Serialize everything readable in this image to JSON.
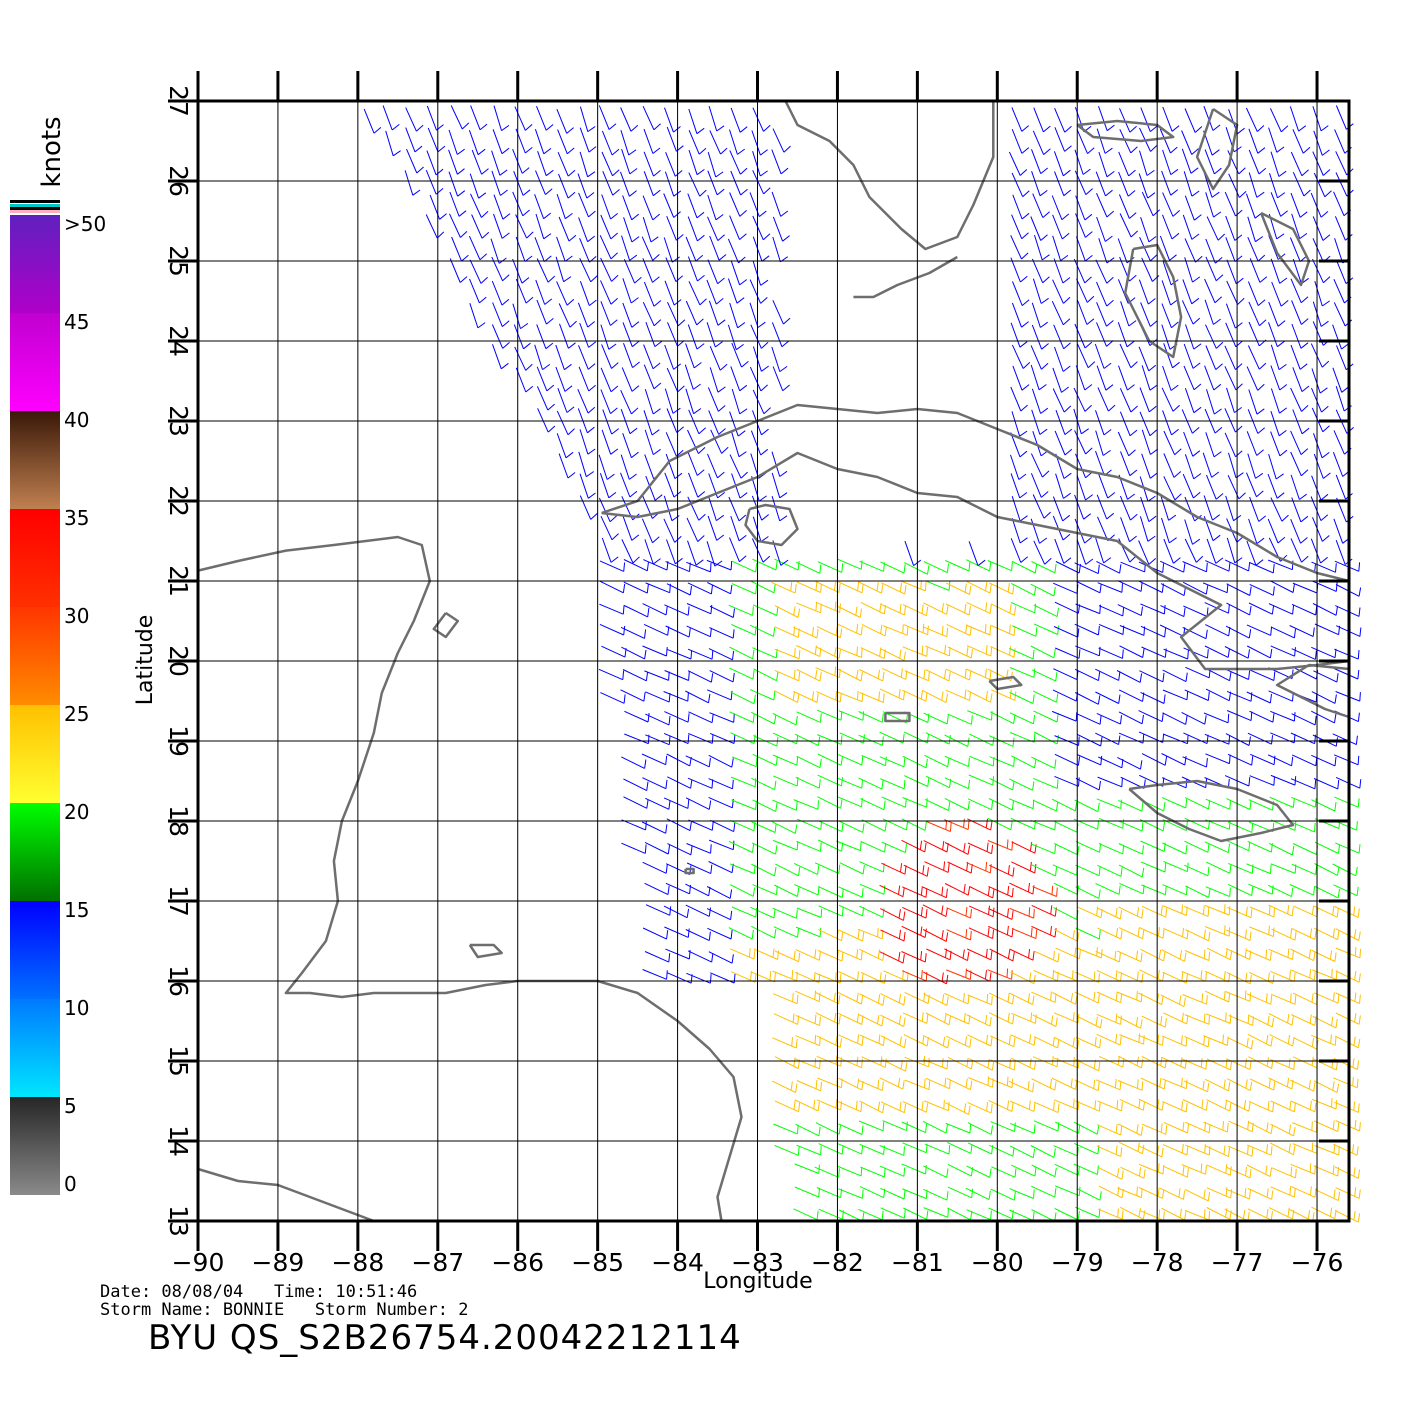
{
  "colorbar": {
    "unit": "knots",
    "labels": [
      {
        "v": 0,
        "t": "0"
      },
      {
        "v": 5,
        "t": "5"
      },
      {
        "v": 10,
        "t": "10"
      },
      {
        "v": 15,
        "t": "15"
      },
      {
        "v": 20,
        "t": "20"
      },
      {
        "v": 25,
        "t": "25"
      },
      {
        "v": 30,
        "t": "30"
      },
      {
        "v": 35,
        "t": "35"
      },
      {
        "v": 40,
        "t": "40"
      },
      {
        "v": 45,
        "t": "45"
      },
      {
        "v": 50,
        "t": ">50"
      }
    ],
    "bands": [
      {
        "from": 0,
        "to": 5,
        "c1": "#8a8a8a",
        "c2": "#262626"
      },
      {
        "from": 5,
        "to": 10,
        "c1": "#00e6ff",
        "c2": "#007aff"
      },
      {
        "from": 10,
        "to": 15,
        "c1": "#0070ff",
        "c2": "#0000ff"
      },
      {
        "from": 15,
        "to": 20,
        "c1": "#007000",
        "c2": "#00ff00"
      },
      {
        "from": 20,
        "to": 25,
        "c1": "#ffff30",
        "c2": "#ffc000"
      },
      {
        "from": 25,
        "to": 30,
        "c1": "#ff8c00",
        "c2": "#ff3500"
      },
      {
        "from": 30,
        "to": 35,
        "c1": "#ff3000",
        "c2": "#ff0000"
      },
      {
        "from": 35,
        "to": 40,
        "c1": "#c08050",
        "c2": "#3a1808"
      },
      {
        "from": 40,
        "to": 45,
        "c1": "#ff00ff",
        "c2": "#c000d0"
      },
      {
        "from": 45,
        "to": 50,
        "c1": "#b000c8",
        "c2": "#6020c0"
      }
    ]
  },
  "chart_data": {
    "type": "map",
    "xlabel": "Longitude",
    "ylabel": "Latitude",
    "xlim": [
      -90,
      -75.6
    ],
    "ylim": [
      13,
      27
    ],
    "xticks": [
      {
        "v": -90,
        "t": "−90"
      },
      {
        "v": -89,
        "t": "−89"
      },
      {
        "v": -88,
        "t": "−88"
      },
      {
        "v": -87,
        "t": "−87"
      },
      {
        "v": -86,
        "t": "−86"
      },
      {
        "v": -85,
        "t": "−85"
      },
      {
        "v": -84,
        "t": "−84"
      },
      {
        "v": -83,
        "t": "−83"
      },
      {
        "v": -82,
        "t": "−82"
      },
      {
        "v": -81,
        "t": "−81"
      },
      {
        "v": -80,
        "t": "−80"
      },
      {
        "v": -79,
        "t": "−79"
      },
      {
        "v": -78,
        "t": "−78"
      },
      {
        "v": -77,
        "t": "−77"
      },
      {
        "v": -76,
        "t": "−76"
      }
    ],
    "yticks": [
      {
        "v": 13,
        "t": "13"
      },
      {
        "v": 14,
        "t": "14"
      },
      {
        "v": 15,
        "t": "15"
      },
      {
        "v": 16,
        "t": "16"
      },
      {
        "v": 17,
        "t": "17"
      },
      {
        "v": 18,
        "t": "18"
      },
      {
        "v": 19,
        "t": "19"
      },
      {
        "v": 20,
        "t": "20"
      },
      {
        "v": 21,
        "t": "21"
      },
      {
        "v": 22,
        "t": "22"
      },
      {
        "v": 23,
        "t": "23"
      },
      {
        "v": 24,
        "t": "24"
      },
      {
        "v": 25,
        "t": "25"
      },
      {
        "v": 26,
        "t": "26"
      },
      {
        "v": 27,
        "t": "27"
      }
    ],
    "grid": true,
    "coast_color": "#6e6e6e",
    "coastlines": [
      {
        "name": "yucatan-honduras",
        "points": [
          [
            -90,
            21.13
          ],
          [
            -89.5,
            21.25
          ],
          [
            -88.9,
            21.38
          ],
          [
            -88.3,
            21.45
          ],
          [
            -87.9,
            21.5
          ],
          [
            -87.5,
            21.55
          ],
          [
            -87.2,
            21.45
          ],
          [
            -87.1,
            21.0
          ],
          [
            -87.3,
            20.5
          ],
          [
            -87.5,
            20.1
          ],
          [
            -87.7,
            19.6
          ],
          [
            -87.8,
            19.1
          ],
          [
            -88.0,
            18.5
          ],
          [
            -88.2,
            18.0
          ],
          [
            -88.3,
            17.5
          ],
          [
            -88.25,
            17.0
          ],
          [
            -88.4,
            16.5
          ],
          [
            -88.7,
            16.1
          ],
          [
            -88.9,
            15.85
          ],
          [
            -88.6,
            15.85
          ],
          [
            -88.2,
            15.8
          ],
          [
            -87.8,
            15.85
          ],
          [
            -87.4,
            15.85
          ],
          [
            -86.9,
            15.85
          ],
          [
            -86.4,
            15.95
          ],
          [
            -86.0,
            16.0
          ],
          [
            -85.5,
            16.0
          ],
          [
            -85.0,
            16.0
          ],
          [
            -84.5,
            15.85
          ],
          [
            -84.0,
            15.5
          ],
          [
            -83.6,
            15.15
          ],
          [
            -83.3,
            14.8
          ],
          [
            -83.2,
            14.3
          ],
          [
            -83.35,
            13.8
          ],
          [
            -83.5,
            13.3
          ],
          [
            -83.45,
            13.0
          ]
        ]
      },
      {
        "name": "nicaragua-pacific",
        "points": [
          [
            -90,
            13.65
          ],
          [
            -89.5,
            13.5
          ],
          [
            -89.0,
            13.45
          ],
          [
            -88.6,
            13.3
          ],
          [
            -88.2,
            13.15
          ],
          [
            -87.8,
            13.0
          ]
        ]
      },
      {
        "name": "florida",
        "points": [
          [
            -82.65,
            27.0
          ],
          [
            -82.5,
            26.7
          ],
          [
            -82.1,
            26.5
          ],
          [
            -81.8,
            26.2
          ],
          [
            -81.6,
            25.8
          ],
          [
            -81.2,
            25.4
          ],
          [
            -80.9,
            25.15
          ],
          [
            -80.5,
            25.3
          ],
          [
            -80.3,
            25.7
          ],
          [
            -80.05,
            26.3
          ],
          [
            -80.05,
            27.0
          ]
        ]
      },
      {
        "name": "florida-keys",
        "points": [
          [
            -80.5,
            25.05
          ],
          [
            -80.85,
            24.85
          ],
          [
            -81.25,
            24.7
          ],
          [
            -81.55,
            24.55
          ],
          [
            -81.8,
            24.55
          ]
        ]
      },
      {
        "name": "cuba",
        "points": [
          [
            -84.95,
            21.85
          ],
          [
            -84.5,
            22.0
          ],
          [
            -84.1,
            22.5
          ],
          [
            -83.5,
            22.8
          ],
          [
            -83.0,
            23.0
          ],
          [
            -82.5,
            23.2
          ],
          [
            -82.0,
            23.15
          ],
          [
            -81.5,
            23.1
          ],
          [
            -81.0,
            23.15
          ],
          [
            -80.5,
            23.1
          ],
          [
            -80.0,
            22.9
          ],
          [
            -79.5,
            22.7
          ],
          [
            -79.0,
            22.4
          ],
          [
            -78.5,
            22.3
          ],
          [
            -78.0,
            22.1
          ],
          [
            -77.5,
            21.8
          ],
          [
            -77.0,
            21.6
          ],
          [
            -76.5,
            21.3
          ],
          [
            -76.0,
            21.1
          ],
          [
            -75.6,
            21.0
          ],
          [
            -75.6,
            20.0
          ],
          [
            -76.0,
            19.95
          ],
          [
            -76.5,
            19.9
          ],
          [
            -77.0,
            19.9
          ],
          [
            -77.4,
            19.9
          ],
          [
            -77.7,
            20.3
          ],
          [
            -77.2,
            20.7
          ],
          [
            -77.6,
            20.9
          ],
          [
            -78.0,
            21.1
          ],
          [
            -78.5,
            21.5
          ],
          [
            -79.0,
            21.6
          ],
          [
            -79.5,
            21.7
          ],
          [
            -80.0,
            21.8
          ],
          [
            -80.5,
            22.05
          ],
          [
            -81.0,
            22.1
          ],
          [
            -81.5,
            22.3
          ],
          [
            -82.0,
            22.4
          ],
          [
            -82.5,
            22.6
          ],
          [
            -83.0,
            22.3
          ],
          [
            -83.5,
            22.1
          ],
          [
            -84.0,
            21.9
          ],
          [
            -84.5,
            21.8
          ],
          [
            -84.95,
            21.85
          ]
        ]
      },
      {
        "name": "isla-de-la-juventud",
        "points": [
          [
            -83.1,
            21.9
          ],
          [
            -82.9,
            21.95
          ],
          [
            -82.6,
            21.9
          ],
          [
            -82.5,
            21.65
          ],
          [
            -82.7,
            21.45
          ],
          [
            -83.0,
            21.5
          ],
          [
            -83.15,
            21.7
          ],
          [
            -83.1,
            21.9
          ]
        ]
      },
      {
        "name": "jamaica",
        "points": [
          [
            -78.35,
            18.4
          ],
          [
            -78.0,
            18.45
          ],
          [
            -77.5,
            18.5
          ],
          [
            -77.0,
            18.4
          ],
          [
            -76.5,
            18.2
          ],
          [
            -76.3,
            17.95
          ],
          [
            -76.7,
            17.85
          ],
          [
            -77.2,
            17.75
          ],
          [
            -77.6,
            17.9
          ],
          [
            -78.0,
            18.1
          ],
          [
            -78.35,
            18.4
          ]
        ]
      },
      {
        "name": "hispaniola",
        "points": [
          [
            -75.6,
            19.9
          ],
          [
            -76.1,
            19.95
          ],
          [
            -76.5,
            19.7
          ],
          [
            -75.9,
            19.4
          ],
          [
            -75.6,
            19.3
          ]
        ]
      },
      {
        "name": "andros",
        "points": [
          [
            -78.3,
            25.15
          ],
          [
            -78.0,
            25.2
          ],
          [
            -77.8,
            24.8
          ],
          [
            -77.7,
            24.3
          ],
          [
            -77.8,
            23.8
          ],
          [
            -78.1,
            24.0
          ],
          [
            -78.4,
            24.6
          ],
          [
            -78.3,
            25.15
          ]
        ]
      },
      {
        "name": "grand-bahama",
        "points": [
          [
            -79.0,
            26.7
          ],
          [
            -78.5,
            26.75
          ],
          [
            -78.0,
            26.7
          ],
          [
            -77.8,
            26.55
          ],
          [
            -78.2,
            26.5
          ],
          [
            -78.8,
            26.55
          ],
          [
            -79.0,
            26.7
          ]
        ]
      },
      {
        "name": "abaco",
        "points": [
          [
            -77.3,
            26.9
          ],
          [
            -77.0,
            26.7
          ],
          [
            -77.1,
            26.2
          ],
          [
            -77.3,
            25.9
          ],
          [
            -77.5,
            26.3
          ],
          [
            -77.3,
            26.9
          ]
        ]
      },
      {
        "name": "eleuthera",
        "points": [
          [
            -76.7,
            25.6
          ],
          [
            -76.3,
            25.4
          ],
          [
            -76.1,
            25.0
          ],
          [
            -76.2,
            24.7
          ],
          [
            -76.5,
            25.1
          ],
          [
            -76.7,
            25.6
          ]
        ]
      },
      {
        "name": "cayman-grand",
        "points": [
          [
            -81.4,
            19.35
          ],
          [
            -81.1,
            19.35
          ],
          [
            -81.1,
            19.25
          ],
          [
            -81.4,
            19.25
          ],
          [
            -81.4,
            19.35
          ]
        ]
      },
      {
        "name": "cayman-brac",
        "points": [
          [
            -80.1,
            19.75
          ],
          [
            -79.8,
            19.8
          ],
          [
            -79.7,
            19.7
          ],
          [
            -80.0,
            19.65
          ],
          [
            -80.1,
            19.75
          ]
        ]
      },
      {
        "name": "cozumel",
        "points": [
          [
            -86.9,
            20.6
          ],
          [
            -86.75,
            20.5
          ],
          [
            -86.9,
            20.3
          ],
          [
            -87.05,
            20.4
          ],
          [
            -86.9,
            20.6
          ]
        ]
      },
      {
        "name": "roatan",
        "points": [
          [
            -86.6,
            16.45
          ],
          [
            -86.3,
            16.45
          ],
          [
            -86.2,
            16.35
          ],
          [
            -86.5,
            16.3
          ],
          [
            -86.6,
            16.45
          ]
        ]
      },
      {
        "name": "swan-islands",
        "points": [
          [
            -83.9,
            17.4
          ],
          [
            -83.8,
            17.4
          ],
          [
            -83.8,
            17.35
          ],
          [
            -83.9,
            17.35
          ],
          [
            -83.9,
            17.4
          ]
        ]
      }
    ]
  },
  "footer": {
    "line1": "Date: 08/08/04   Time: 10:51:46",
    "line2": "Storm Name: BONNIE   Storm Number: 2",
    "title": "BYU QS_S2B26754.20042212114"
  }
}
